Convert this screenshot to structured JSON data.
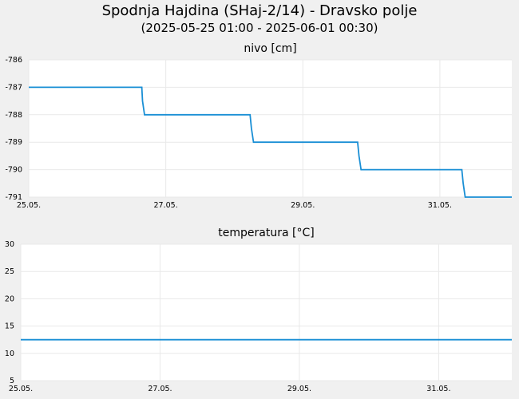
{
  "header": {
    "title": "Spodnja Hajdina (SHaj-2/14) - Dravsko polje",
    "subtitle": "(2025-05-25 01:00 - 2025-06-01 00:30)"
  },
  "colors": {
    "line": "#1a8fd5",
    "grid": "#e9e9e9",
    "plot_bg": "#ffffff",
    "page_bg": "#f0f0f0"
  },
  "chart_data": [
    {
      "id": "nivo",
      "type": "line",
      "title": "nivo [cm]",
      "x_tick_labels": [
        "25.05.",
        "27.05.",
        "29.05.",
        "31.05."
      ],
      "x_tick_days": [
        0,
        2,
        4,
        6
      ],
      "xlim_days": [
        0,
        7.05
      ],
      "ylim": [
        -791,
        -786
      ],
      "y_ticks": [
        -786,
        -787,
        -788,
        -789,
        -790,
        -791
      ],
      "grid": true,
      "series": [
        {
          "x_days": [
            0,
            1.65,
            1.66,
            1.69,
            3.23,
            3.25,
            3.28,
            4.8,
            4.82,
            4.85,
            6.32,
            6.34,
            6.37,
            7.05
          ],
          "values": [
            -787,
            -787,
            -787.5,
            -788,
            -788,
            -788.5,
            -789,
            -789,
            -789.5,
            -790,
            -790,
            -790.5,
            -791,
            -791
          ]
        }
      ]
    },
    {
      "id": "temperatura",
      "type": "line",
      "title": "temperatura [°C]",
      "x_tick_labels": [
        "25.05.",
        "27.05.",
        "29.05.",
        "31.05."
      ],
      "x_tick_days": [
        0,
        2,
        4,
        6
      ],
      "xlim_days": [
        0,
        7.05
      ],
      "ylim": [
        5,
        30
      ],
      "y_ticks": [
        30,
        25,
        20,
        15,
        10,
        5
      ],
      "grid": true,
      "series": [
        {
          "x_days": [
            0,
            7.05
          ],
          "values": [
            12.5,
            12.5
          ]
        }
      ]
    }
  ]
}
